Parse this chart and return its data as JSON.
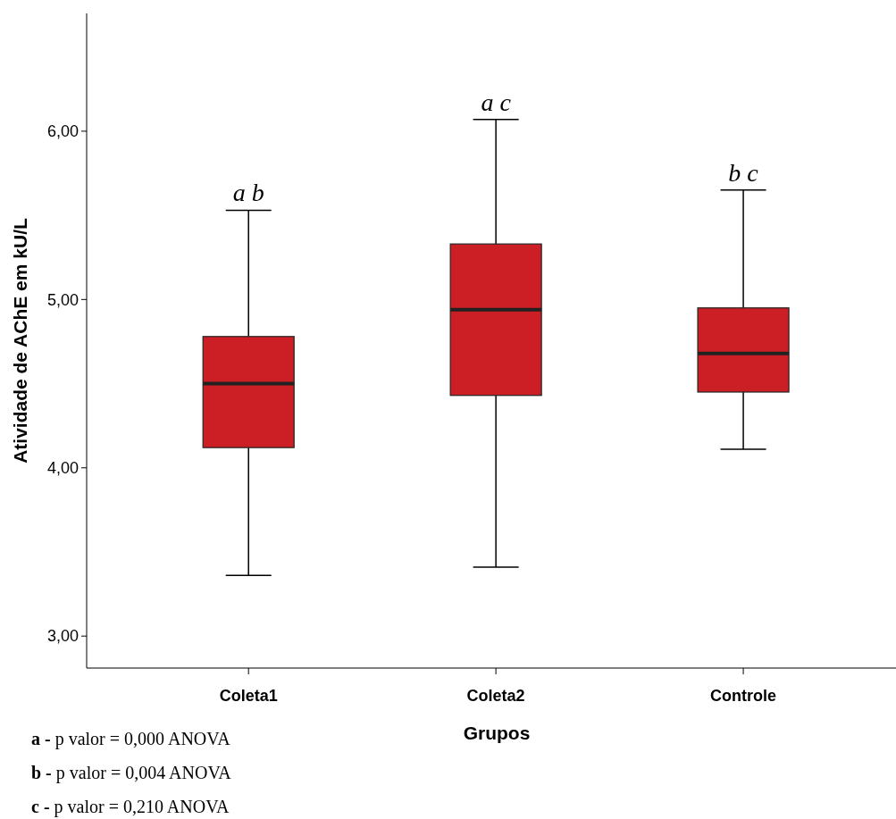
{
  "chart_data": {
    "type": "box",
    "xlabel": "Grupos",
    "ylabel": "Atividade de AChE em kU/L",
    "categories": [
      "Coleta1",
      "Coleta2",
      "Controle"
    ],
    "color": "#cc1f25",
    "boxes": [
      {
        "low": 3.36,
        "q1": 4.12,
        "median": 4.5,
        "q3": 4.78,
        "high": 5.53
      },
      {
        "low": 3.41,
        "q1": 4.43,
        "median": 4.94,
        "q3": 5.33,
        "high": 6.07
      },
      {
        "low": 4.11,
        "q1": 4.45,
        "median": 4.68,
        "q3": 4.95,
        "high": 5.65
      }
    ],
    "ylim": [
      2.81,
      6.7
    ],
    "yticks": [
      {
        "value": 3,
        "label": "3,00"
      },
      {
        "value": 4,
        "label": "4,00"
      },
      {
        "value": 5,
        "label": "5,00"
      },
      {
        "value": 6,
        "label": "6,00"
      }
    ],
    "grid": false,
    "annotations": [
      {
        "text": "a b",
        "x": "Coleta1",
        "y": 5.53
      },
      {
        "text": "a c",
        "x": "Coleta2",
        "y": 6.07
      },
      {
        "text": "b c",
        "x": "Controle",
        "y": 5.65
      },
      "a - p valor = 0,000 ANOVA",
      "b - p valor = 0,004 ANOVA",
      "c - p valor = 0,210 ANOVA"
    ]
  }
}
